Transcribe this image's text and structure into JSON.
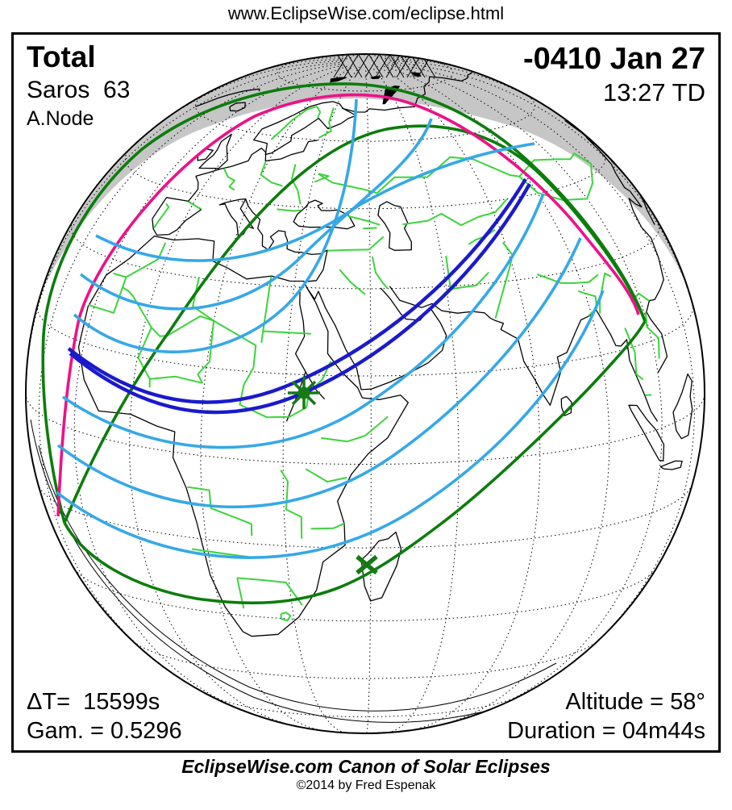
{
  "header": {
    "url": "www.EclipseWise.com/eclipse.html"
  },
  "eclipse": {
    "type": "Total",
    "saros": "Saros  63",
    "node": "A.Node",
    "date": "-0410 Jan 27",
    "time": "13:27 TD",
    "delta_t": "ΔT=  15599s",
    "gamma": "Gam. = 0.5296",
    "altitude": "Altitude = 58°",
    "duration": "Duration = 04m44s"
  },
  "footer": {
    "title": "EclipseWise.com Canon of Solar Eclipses",
    "copyright": "©2014 by Fred Espenak"
  },
  "markers": {
    "greatest_eclipse": "greatest-eclipse-star-icon",
    "path_end": "path-end-x-icon"
  },
  "colors": {
    "central_path_blue": "#1a1acc",
    "magnitude_contours_cyan": "#35a8e8",
    "penumbral_limit_magenta": "#ee1188",
    "sunrise_sunset_green": "#0b7d0b",
    "political_borders_green": "#3bd43b",
    "no_eclipse_gray": "#c6c6c6",
    "coastline_black": "#000000",
    "marker_green": "#157a15"
  }
}
